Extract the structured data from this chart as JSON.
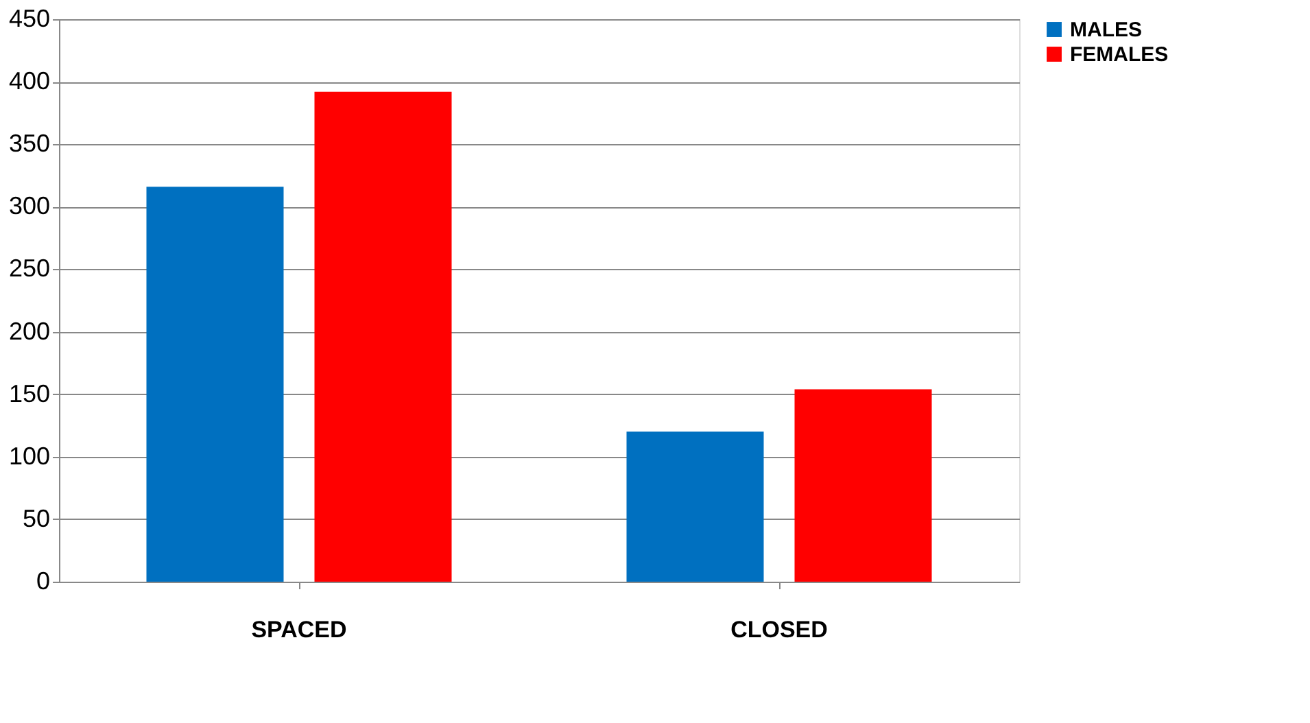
{
  "chart_data": {
    "type": "bar",
    "categories": [
      "SPACED",
      "CLOSED"
    ],
    "series": [
      {
        "name": "MALES",
        "color": "#0070c0",
        "values": [
          316,
          120
        ]
      },
      {
        "name": "FEMALES",
        "color": "#ff0000",
        "values": [
          392,
          154
        ]
      }
    ],
    "ylim": [
      0,
      450
    ],
    "yticks": [
      0,
      50,
      100,
      150,
      200,
      250,
      300,
      350,
      400,
      450
    ],
    "grid": "y",
    "legend": "right"
  }
}
